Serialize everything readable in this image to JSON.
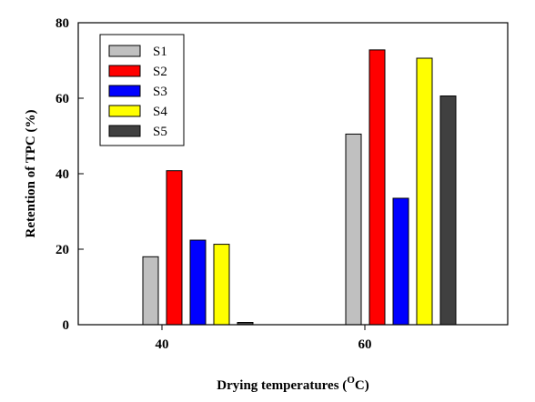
{
  "chart_data": {
    "type": "bar",
    "title": "",
    "xlabel": "Drying temperatures (",
    "xlabel_sup": "O",
    "xlabel_suffix": "C)",
    "ylabel": "Retention of TPC (%)",
    "categories": [
      "40",
      "60"
    ],
    "ylim": [
      0,
      80
    ],
    "yticks": [
      "0",
      "20",
      "40",
      "60",
      "80"
    ],
    "grid": false,
    "legend_position": "top-left",
    "series": [
      {
        "name": "S1",
        "values": [
          18,
          50.5
        ],
        "color": "#c0c0c0"
      },
      {
        "name": "S2",
        "values": [
          40.8,
          72.8
        ],
        "color": "#ff0000"
      },
      {
        "name": "S3",
        "values": [
          22.4,
          33.5
        ],
        "color": "#0000ff"
      },
      {
        "name": "S4",
        "values": [
          21.3,
          70.6
        ],
        "color": "#ffff00"
      },
      {
        "name": "S5",
        "values": [
          0.6,
          60.6
        ],
        "color": "#404040"
      }
    ]
  }
}
